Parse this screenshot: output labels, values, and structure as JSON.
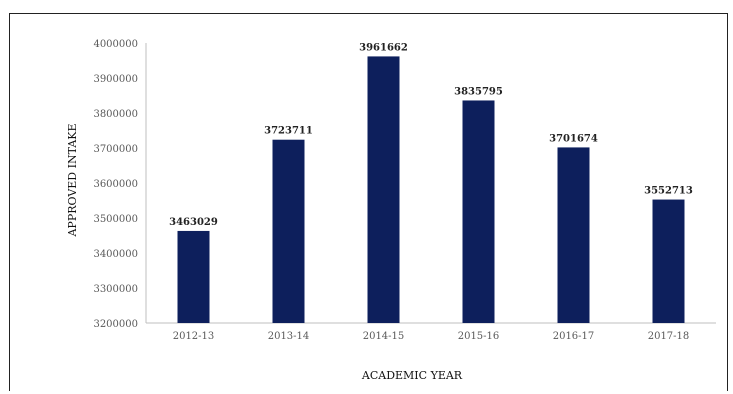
{
  "chart_data": {
    "type": "bar",
    "categories": [
      "2012-13",
      "2013-14",
      "2014-15",
      "2015-16",
      "2016-17",
      "2017-18"
    ],
    "values": [
      3463029,
      3723711,
      3961662,
      3835795,
      3701674,
      3552713
    ],
    "data_labels": [
      "3463029",
      "3723711",
      "3961662",
      "3835795",
      "3701674",
      "3552713"
    ],
    "xlabel": "ACADEMIC YEAR",
    "ylabel": "APPROVED INTAKE",
    "ylim": [
      3200000,
      4000000
    ],
    "yticks": [
      3200000,
      3300000,
      3400000,
      3500000,
      3600000,
      3700000,
      3800000,
      3900000,
      4000000
    ],
    "ytick_labels": [
      "3200000",
      "3300000",
      "3400000",
      "3500000",
      "3600000",
      "3700000",
      "3800000",
      "3900000",
      "4000000"
    ],
    "bar_color": "#0d1f5c",
    "grid": false,
    "legend": "none"
  }
}
